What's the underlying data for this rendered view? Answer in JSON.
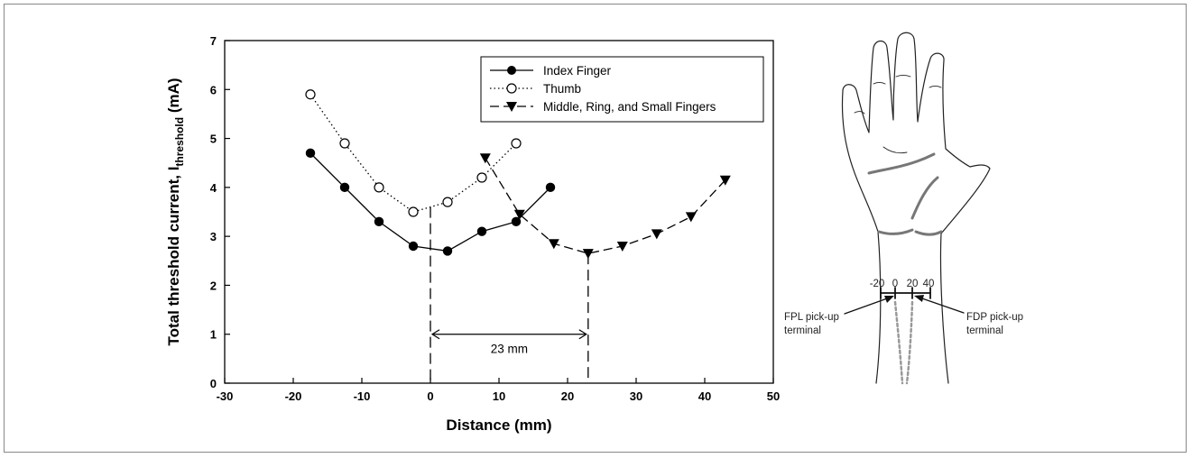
{
  "chart_data": {
    "type": "line",
    "xlabel": "Distance (mm)",
    "ylabel": "Total threshold current, I",
    "ylabel_subscript": "threshold",
    "ylabel_unit": " (mA)",
    "xlim": [
      -30,
      50
    ],
    "ylim": [
      0,
      7
    ],
    "x_ticks": [
      "-30",
      "-20",
      "-10",
      "0",
      "10",
      "20",
      "30",
      "40",
      "50"
    ],
    "y_ticks": [
      "0",
      "1",
      "2",
      "3",
      "4",
      "5",
      "6",
      "7"
    ],
    "grid": false,
    "legend_position": "top-right",
    "series": [
      {
        "name": "Index Finger",
        "marker": "filled-circle",
        "line": "solid",
        "x": [
          -17.5,
          -12.5,
          -7.5,
          -2.5,
          2.5,
          7.5,
          12.5,
          17.5
        ],
        "y": [
          4.7,
          4.0,
          3.3,
          2.8,
          2.7,
          3.1,
          3.3,
          4.0
        ]
      },
      {
        "name": "Thumb",
        "marker": "open-circle",
        "line": "dotted",
        "x": [
          -17.5,
          -12.5,
          -7.5,
          -2.5,
          2.5,
          7.5,
          12.5
        ],
        "y": [
          5.9,
          4.9,
          4.0,
          3.5,
          3.7,
          4.2,
          4.9
        ]
      },
      {
        "name": "Middle, Ring, and Small Fingers",
        "marker": "filled-triangle-down",
        "line": "dashed",
        "x": [
          8,
          13,
          18,
          23,
          28,
          33,
          38,
          43
        ],
        "y": [
          4.6,
          3.45,
          2.85,
          2.65,
          2.8,
          3.05,
          3.4,
          4.15
        ]
      }
    ],
    "annotations": {
      "span_label": "23 mm",
      "span_from": 0,
      "span_to": 23,
      "span_y": 1.0
    }
  },
  "illustration": {
    "scale_labels": [
      "-20",
      "0",
      "20",
      "40"
    ],
    "left_label_line1": "FPL pick-up",
    "left_label_line2": "terminal",
    "right_label_line1": "FDP pick-up",
    "right_label_line2": "terminal"
  },
  "colors": {
    "ink": "#000000",
    "crease": "#777777",
    "electrode_trace": "#999999"
  }
}
